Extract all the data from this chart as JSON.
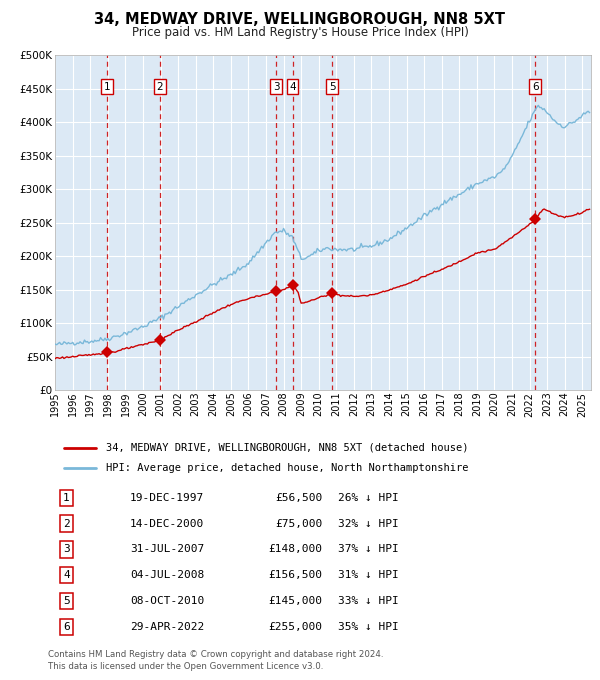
{
  "title": "34, MEDWAY DRIVE, WELLINGBOROUGH, NN8 5XT",
  "subtitle": "Price paid vs. HM Land Registry's House Price Index (HPI)",
  "legend_line1": "34, MEDWAY DRIVE, WELLINGBOROUGH, NN8 5XT (detached house)",
  "legend_line2": "HPI: Average price, detached house, North Northamptonshire",
  "footer1": "Contains HM Land Registry data © Crown copyright and database right 2024.",
  "footer2": "This data is licensed under the Open Government Licence v3.0.",
  "hpi_color": "#7ab8d9",
  "price_color": "#cc0000",
  "background_color": "#dce9f5",
  "grid_color": "#ffffff",
  "sale_points": [
    {
      "label": "1",
      "price": 56500,
      "date_str": "19-DEC-1997",
      "pct": "26%",
      "x_label": 1997.97
    },
    {
      "label": "2",
      "price": 75000,
      "date_str": "14-DEC-2000",
      "pct": "32%",
      "x_label": 2000.95
    },
    {
      "label": "3",
      "price": 148000,
      "date_str": "31-JUL-2007",
      "pct": "37%",
      "x_label": 2007.58
    },
    {
      "label": "4",
      "price": 156500,
      "date_str": "04-JUL-2008",
      "pct": "31%",
      "x_label": 2008.51
    },
    {
      "label": "5",
      "price": 145000,
      "date_str": "08-OCT-2010",
      "pct": "33%",
      "x_label": 2010.77
    },
    {
      "label": "6",
      "price": 255000,
      "date_str": "29-APR-2022",
      "pct": "35%",
      "x_label": 2022.33
    }
  ],
  "ylim": [
    0,
    500000
  ],
  "yticks": [
    0,
    50000,
    100000,
    150000,
    200000,
    250000,
    300000,
    350000,
    400000,
    450000,
    500000
  ],
  "ytick_labels": [
    "£0",
    "£50K",
    "£100K",
    "£150K",
    "£200K",
    "£250K",
    "£300K",
    "£350K",
    "£400K",
    "£450K",
    "£500K"
  ],
  "xlim_start": 1995.0,
  "xlim_end": 2025.5,
  "hpi_anchors": [
    [
      1995.0,
      68000
    ],
    [
      1996.0,
      71000
    ],
    [
      1997.0,
      73000
    ],
    [
      1998.0,
      77000
    ],
    [
      1999.0,
      85000
    ],
    [
      2000.0,
      95000
    ],
    [
      2001.0,
      108000
    ],
    [
      2002.0,
      125000
    ],
    [
      2003.0,
      142000
    ],
    [
      2004.0,
      158000
    ],
    [
      2005.0,
      172000
    ],
    [
      2006.0,
      190000
    ],
    [
      2007.5,
      235000
    ],
    [
      2008.0,
      238000
    ],
    [
      2008.5,
      228000
    ],
    [
      2009.0,
      196000
    ],
    [
      2009.5,
      200000
    ],
    [
      2010.0,
      208000
    ],
    [
      2010.5,
      212000
    ],
    [
      2011.0,
      210000
    ],
    [
      2012.0,
      210000
    ],
    [
      2013.0,
      215000
    ],
    [
      2014.0,
      225000
    ],
    [
      2015.0,
      242000
    ],
    [
      2016.0,
      260000
    ],
    [
      2017.0,
      278000
    ],
    [
      2018.0,
      292000
    ],
    [
      2019.0,
      308000
    ],
    [
      2020.0,
      318000
    ],
    [
      2020.5,
      328000
    ],
    [
      2021.0,
      348000
    ],
    [
      2021.5,
      375000
    ],
    [
      2022.0,
      402000
    ],
    [
      2022.5,
      425000
    ],
    [
      2023.0,
      415000
    ],
    [
      2023.5,
      400000
    ],
    [
      2024.0,
      393000
    ],
    [
      2024.5,
      400000
    ],
    [
      2025.3,
      415000
    ]
  ],
  "price_anchors": [
    [
      1995.0,
      48000
    ],
    [
      1996.0,
      50000
    ],
    [
      1997.0,
      53000
    ],
    [
      1997.97,
      56500
    ],
    [
      1998.5,
      58000
    ],
    [
      1999.0,
      62000
    ],
    [
      2000.0,
      68000
    ],
    [
      2000.95,
      75000
    ],
    [
      2002.0,
      90000
    ],
    [
      2003.0,
      102000
    ],
    [
      2004.0,
      116000
    ],
    [
      2005.0,
      128000
    ],
    [
      2006.0,
      137000
    ],
    [
      2007.0,
      143000
    ],
    [
      2007.58,
      148000
    ],
    [
      2008.0,
      150000
    ],
    [
      2008.51,
      156500
    ],
    [
      2008.8,
      148000
    ],
    [
      2009.0,
      130000
    ],
    [
      2009.5,
      133000
    ],
    [
      2010.0,
      138000
    ],
    [
      2010.77,
      145000
    ],
    [
      2011.0,
      143000
    ],
    [
      2011.5,
      141000
    ],
    [
      2012.0,
      140000
    ],
    [
      2013.0,
      142000
    ],
    [
      2014.0,
      150000
    ],
    [
      2015.0,
      158000
    ],
    [
      2016.0,
      170000
    ],
    [
      2017.0,
      180000
    ],
    [
      2018.0,
      192000
    ],
    [
      2019.0,
      205000
    ],
    [
      2020.0,
      210000
    ],
    [
      2021.0,
      228000
    ],
    [
      2022.0,
      248000
    ],
    [
      2022.33,
      255000
    ],
    [
      2022.8,
      271000
    ],
    [
      2023.0,
      268000
    ],
    [
      2023.5,
      262000
    ],
    [
      2024.0,
      258000
    ],
    [
      2025.0,
      265000
    ],
    [
      2025.3,
      270000
    ]
  ]
}
